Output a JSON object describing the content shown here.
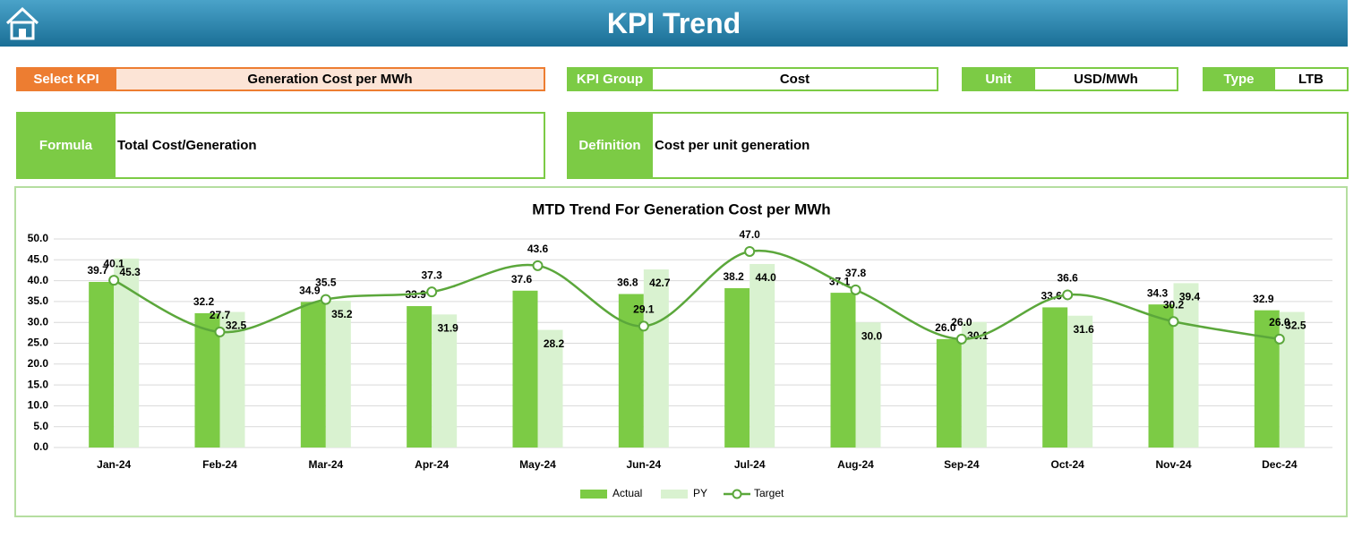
{
  "header": {
    "title": "KPI Trend"
  },
  "fields": [
    {
      "label": "Select KPI",
      "value": "Generation Cost per MWh"
    },
    {
      "label": "KPI Group",
      "value": "Cost"
    },
    {
      "label": "Unit",
      "value": "USD/MWh"
    },
    {
      "label": "Type",
      "value": "LTB"
    }
  ],
  "formula": {
    "label": "Formula",
    "value": "Total Cost/Generation"
  },
  "definition": {
    "label": "Definition",
    "value": "Cost per unit generation"
  },
  "chart_data": {
    "type": "bar",
    "title": "MTD Trend For Generation Cost per MWh",
    "categories": [
      "Jan-24",
      "Feb-24",
      "Mar-24",
      "Apr-24",
      "May-24",
      "Jun-24",
      "Jul-24",
      "Aug-24",
      "Sep-24",
      "Oct-24",
      "Nov-24",
      "Dec-24"
    ],
    "series": [
      {
        "name": "Actual",
        "color": "#7ccb45",
        "type": "bar",
        "values": [
          39.7,
          32.2,
          34.9,
          33.9,
          37.6,
          36.8,
          38.2,
          37.1,
          26.0,
          33.6,
          34.3,
          32.9
        ],
        "value_labels": [
          "39.7",
          "32.2",
          "34.9",
          "33.9",
          "37.6",
          "36.8",
          "38.2",
          "37.1",
          "26.0",
          "33.6",
          "34.3",
          "32.9"
        ]
      },
      {
        "name": "PY",
        "color": "#d9f2d0",
        "type": "bar",
        "values": [
          45.3,
          32.5,
          35.2,
          31.9,
          28.2,
          42.7,
          44.0,
          30.0,
          30.1,
          31.6,
          39.4,
          32.5
        ],
        "value_labels": [
          "45.3",
          "32.5",
          "35.2",
          "31.9",
          "28.2",
          "42.7",
          "44.0",
          "30.0",
          "30.1",
          "31.6",
          "39.4",
          "32.5"
        ]
      },
      {
        "name": "Target",
        "color": "#5ba73b",
        "type": "line",
        "values": [
          40.1,
          27.7,
          35.5,
          37.3,
          43.6,
          29.1,
          47.0,
          37.8,
          26.0,
          36.6,
          30.2,
          26.0
        ],
        "value_labels": [
          "40.1",
          "27.7",
          "35.5",
          "37.3",
          "43.6",
          "29.1",
          "47.0",
          "37.8",
          "26.0",
          "36.6",
          "30.2",
          "26.0"
        ]
      }
    ],
    "ylim": [
      0,
      50
    ],
    "yticks": [
      {
        "value": 0,
        "label": "0.0"
      },
      {
        "value": 5,
        "label": "5.0"
      },
      {
        "value": 10,
        "label": "10.0"
      },
      {
        "value": 15,
        "label": "15.0"
      },
      {
        "value": 20,
        "label": "20.0"
      },
      {
        "value": 25,
        "label": "25.0"
      },
      {
        "value": 30,
        "label": "30.0"
      },
      {
        "value": 35,
        "label": "35.0"
      },
      {
        "value": 40,
        "label": "40.0"
      },
      {
        "value": 45,
        "label": "45.0"
      },
      {
        "value": 50,
        "label": "50.0"
      }
    ],
    "grid": true,
    "legend": "bottom"
  }
}
